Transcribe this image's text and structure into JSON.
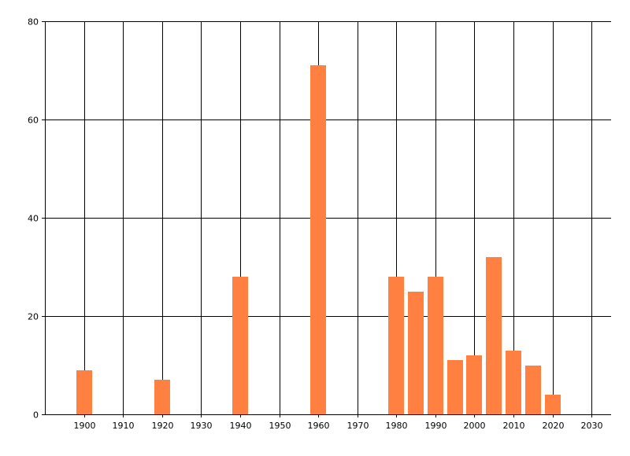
{
  "chart_data": {
    "type": "bar",
    "title": "",
    "xlabel": "",
    "ylabel": "",
    "x": [
      1900,
      1920,
      1940,
      1960,
      1980,
      1985,
      1990,
      1995,
      2000,
      2005,
      2010,
      2015,
      2020
    ],
    "values": [
      9,
      7,
      28,
      71,
      28,
      25,
      28,
      11,
      12,
      32,
      13,
      10,
      4
    ],
    "xlim": [
      1890,
      2035
    ],
    "ylim": [
      0,
      80
    ],
    "x_ticks": [
      "1900",
      "1910",
      "1920",
      "1930",
      "1940",
      "1950",
      "1960",
      "1970",
      "1980",
      "1990",
      "2000",
      "2010",
      "2020",
      "2030"
    ],
    "y_ticks": [
      "0",
      "20",
      "40",
      "60",
      "80"
    ],
    "grid": true,
    "legend": "none",
    "bar_color": "#FF8040",
    "grid_color": "#000000"
  }
}
